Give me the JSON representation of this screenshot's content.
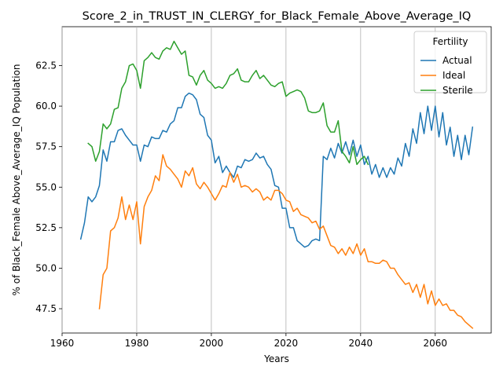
{
  "chart_data": {
    "type": "line",
    "title": "Score_2_in_TRUST_IN_CLERGY_for_Black_Female_Above_Average_IQ",
    "xlabel": "Years",
    "ylabel": "% of Black_Female Above_Average_IQ Population",
    "xlim": [
      1960,
      2075
    ],
    "ylim": [
      46.0,
      64.9
    ],
    "xticks": [
      1960,
      1980,
      2000,
      2020,
      2040,
      2060
    ],
    "yticks": [
      47.5,
      50.0,
      52.5,
      55.0,
      57.5,
      60.0,
      62.5
    ],
    "ytick_labels": [
      "47.5",
      "50.0",
      "52.5",
      "55.0",
      "57.5",
      "60.0",
      "62.5"
    ],
    "grid": "x-only",
    "legend": {
      "title": "Fertility",
      "placement": "top-right"
    },
    "series": [
      {
        "name": "Actual",
        "color": "#1f77b4",
        "x": [
          1965,
          1966,
          1967,
          1968,
          1969,
          1970,
          1971,
          1972,
          1973,
          1974,
          1975,
          1976,
          1977,
          1978,
          1979,
          1980,
          1981,
          1982,
          1983,
          1984,
          1985,
          1986,
          1987,
          1988,
          1989,
          1990,
          1991,
          1992,
          1993,
          1994,
          1995,
          1996,
          1997,
          1998,
          1999,
          2000,
          2001,
          2002,
          2003,
          2004,
          2005,
          2006,
          2007,
          2008,
          2009,
          2010,
          2011,
          2012,
          2013,
          2014,
          2015,
          2016,
          2017,
          2018,
          2019,
          2020,
          2021,
          2022,
          2023,
          2024,
          2025,
          2026,
          2027,
          2028,
          2029,
          2030,
          2031,
          2032,
          2033,
          2034,
          2035,
          2036,
          2037,
          2038,
          2039,
          2040,
          2041,
          2042,
          2043,
          2044,
          2045,
          2046,
          2047,
          2048,
          2049,
          2050,
          2051,
          2052,
          2053,
          2054,
          2055,
          2056,
          2057,
          2058,
          2059,
          2060,
          2061,
          2062,
          2063,
          2064,
          2065,
          2066,
          2067,
          2068,
          2069,
          2070
        ],
        "values": [
          51.8,
          52.8,
          54.4,
          54.1,
          54.4,
          55.1,
          57.3,
          56.6,
          57.8,
          57.8,
          58.5,
          58.6,
          58.2,
          57.9,
          57.6,
          57.6,
          56.6,
          57.6,
          57.5,
          58.1,
          58.0,
          58.0,
          58.5,
          58.4,
          58.9,
          59.1,
          59.9,
          59.9,
          60.6,
          60.8,
          60.7,
          60.4,
          59.5,
          59.3,
          58.2,
          57.9,
          56.5,
          56.9,
          55.9,
          56.3,
          55.9,
          55.6,
          56.3,
          56.2,
          56.7,
          56.6,
          56.7,
          57.1,
          56.8,
          56.9,
          56.4,
          56.1,
          55.1,
          55.0,
          53.7,
          53.7,
          52.5,
          52.5,
          51.7,
          51.5,
          51.3,
          51.4,
          51.7,
          51.8,
          51.7,
          56.9,
          56.7,
          57.4,
          56.8,
          57.7,
          57.1,
          57.8,
          57.0,
          57.9,
          56.9,
          57.6,
          56.4,
          56.9,
          55.8,
          56.4,
          55.6,
          56.2,
          55.6,
          56.2,
          55.8,
          56.8,
          56.3,
          57.7,
          56.9,
          58.6,
          57.7,
          59.6,
          58.3,
          60.0,
          58.5,
          60.0,
          58.1,
          59.6,
          57.6,
          58.7,
          56.9,
          58.2,
          56.7,
          58.2,
          57.0,
          58.7
        ]
      },
      {
        "name": "Ideal",
        "color": "#ff7f0e",
        "x": [
          1970,
          1971,
          1972,
          1973,
          1974,
          1975,
          1976,
          1977,
          1978,
          1979,
          1980,
          1981,
          1982,
          1983,
          1984,
          1985,
          1986,
          1987,
          1988,
          1989,
          1990,
          1991,
          1992,
          1993,
          1994,
          1995,
          1996,
          1997,
          1998,
          1999,
          2000,
          2001,
          2002,
          2003,
          2004,
          2005,
          2006,
          2007,
          2008,
          2009,
          2010,
          2011,
          2012,
          2013,
          2014,
          2015,
          2016,
          2017,
          2018,
          2019,
          2020,
          2021,
          2022,
          2023,
          2024,
          2025,
          2026,
          2027,
          2028,
          2029,
          2030,
          2031,
          2032,
          2033,
          2034,
          2035,
          2036,
          2037,
          2038,
          2039,
          2040,
          2041,
          2042,
          2043,
          2044,
          2045,
          2046,
          2047,
          2048,
          2049,
          2050,
          2051,
          2052,
          2053,
          2054,
          2055,
          2056,
          2057,
          2058,
          2059,
          2060,
          2061,
          2062,
          2063,
          2064,
          2065,
          2066,
          2067,
          2068,
          2069,
          2070
        ],
        "values": [
          47.5,
          49.6,
          50.0,
          52.3,
          52.5,
          53.1,
          54.4,
          53.0,
          53.9,
          53.0,
          54.1,
          51.5,
          53.8,
          54.4,
          54.8,
          55.7,
          55.4,
          57.0,
          56.3,
          56.1,
          55.8,
          55.5,
          55.0,
          56.0,
          55.7,
          56.2,
          55.2,
          54.9,
          55.3,
          55.0,
          54.6,
          54.2,
          54.6,
          55.1,
          55.0,
          55.9,
          55.3,
          55.8,
          55.0,
          55.1,
          55.0,
          54.7,
          54.9,
          54.7,
          54.2,
          54.4,
          54.2,
          54.8,
          54.8,
          54.6,
          54.2,
          54.1,
          53.5,
          53.7,
          53.3,
          53.2,
          53.1,
          52.8,
          52.9,
          52.4,
          52.6,
          52.0,
          51.4,
          51.3,
          50.9,
          51.2,
          50.8,
          51.3,
          50.9,
          51.5,
          50.8,
          51.2,
          50.4,
          50.4,
          50.3,
          50.3,
          50.5,
          50.4,
          50.0,
          50.0,
          49.6,
          49.3,
          49.0,
          49.1,
          48.5,
          49.0,
          48.2,
          49.0,
          47.8,
          48.6,
          47.7,
          48.1,
          47.7,
          47.8,
          47.4,
          47.4,
          47.1,
          47.0,
          46.7,
          46.5,
          46.3
        ]
      },
      {
        "name": "Sterile",
        "color": "#2ca02c",
        "x": [
          1967,
          1968,
          1969,
          1970,
          1971,
          1972,
          1973,
          1974,
          1975,
          1976,
          1977,
          1978,
          1979,
          1980,
          1981,
          1982,
          1983,
          1984,
          1985,
          1986,
          1987,
          1988,
          1989,
          1990,
          1991,
          1992,
          1993,
          1994,
          1995,
          1996,
          1997,
          1998,
          1999,
          2000,
          2001,
          2002,
          2003,
          2004,
          2005,
          2006,
          2007,
          2008,
          2009,
          2010,
          2011,
          2012,
          2013,
          2014,
          2015,
          2016,
          2017,
          2018,
          2019,
          2020,
          2021,
          2022,
          2023,
          2024,
          2025,
          2026,
          2027,
          2028,
          2029,
          2030,
          2031,
          2032,
          2033,
          2034,
          2035,
          2036,
          2037,
          2038,
          2039,
          2040,
          2041,
          2042
        ],
        "values": [
          57.7,
          57.5,
          56.6,
          57.2,
          58.9,
          58.6,
          58.9,
          59.8,
          59.9,
          61.1,
          61.5,
          62.5,
          62.6,
          62.2,
          61.1,
          62.8,
          63.0,
          63.3,
          63.0,
          62.9,
          63.4,
          63.6,
          63.5,
          64.0,
          63.6,
          63.2,
          63.4,
          61.9,
          61.8,
          61.3,
          61.9,
          62.2,
          61.6,
          61.4,
          61.1,
          61.2,
          61.1,
          61.4,
          61.9,
          62.0,
          62.3,
          61.6,
          61.5,
          61.5,
          61.9,
          62.2,
          61.7,
          61.9,
          61.6,
          61.3,
          61.2,
          61.4,
          61.5,
          60.6,
          60.8,
          60.9,
          61.0,
          60.9,
          60.5,
          59.7,
          59.6,
          59.6,
          59.7,
          60.2,
          58.8,
          58.4,
          58.4,
          59.1,
          57.2,
          56.9,
          56.5,
          57.5,
          56.4,
          56.7,
          56.9,
          56.4
        ]
      }
    ]
  }
}
